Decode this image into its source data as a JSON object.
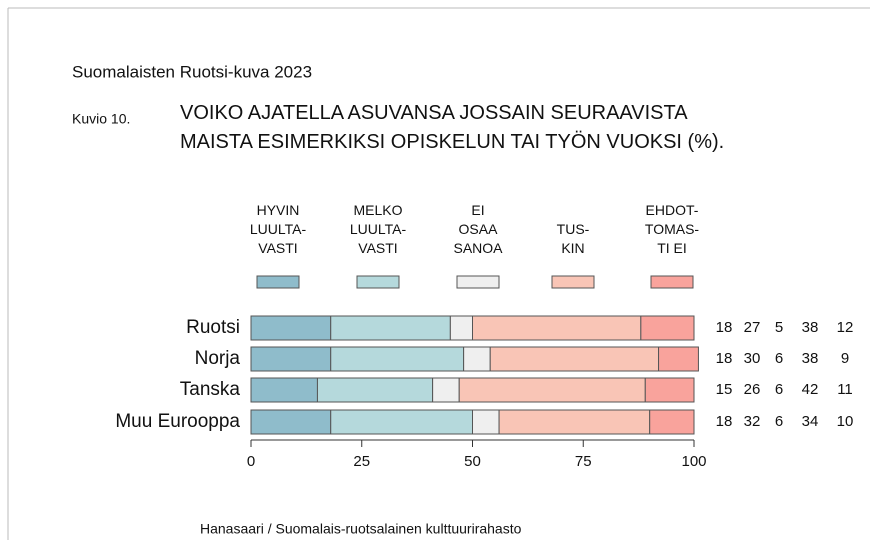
{
  "chart_data": {
    "type": "stacked_barh",
    "title": "Suomalaisten Ruotsi-kuva 2023",
    "figure_label": "Kuvio 10.",
    "subtitle": "VOIKO AJATELLA ASUVANSA JOSSAIN SEURAAVISTA\nMAISTA ESIMERKIKSI OPISKELUN TAI TYÖN VUOKSI (%).",
    "categories": [
      "Ruotsi",
      "Norja",
      "Tanska",
      "Muu Eurooppa"
    ],
    "series": [
      {
        "name": "HYVIN\nLUULTA-\nVASTI",
        "color": "#8fbccb",
        "values": [
          18,
          18,
          15,
          18
        ]
      },
      {
        "name": "MELKO\nLUULTA-\nVASTI",
        "color": "#b5d9dc",
        "values": [
          27,
          30,
          26,
          32
        ]
      },
      {
        "name": "EI\nOSAA\nSANOA",
        "color": "#efefef",
        "values": [
          5,
          6,
          6,
          6
        ]
      },
      {
        "name": "TUS-\nKIN",
        "color": "#f9c5b6",
        "values": [
          38,
          38,
          42,
          34
        ]
      },
      {
        "name": "EHDOT-\nTOMAS-\nTI EI",
        "color": "#f9a39c",
        "values": [
          12,
          9,
          11,
          10
        ]
      }
    ],
    "xlim": [
      0,
      100
    ],
    "xticks": [
      0,
      25,
      50,
      75,
      100
    ],
    "source": "Hanasaari / Suomalais-ruotsalainen kulttuurirahasto"
  }
}
